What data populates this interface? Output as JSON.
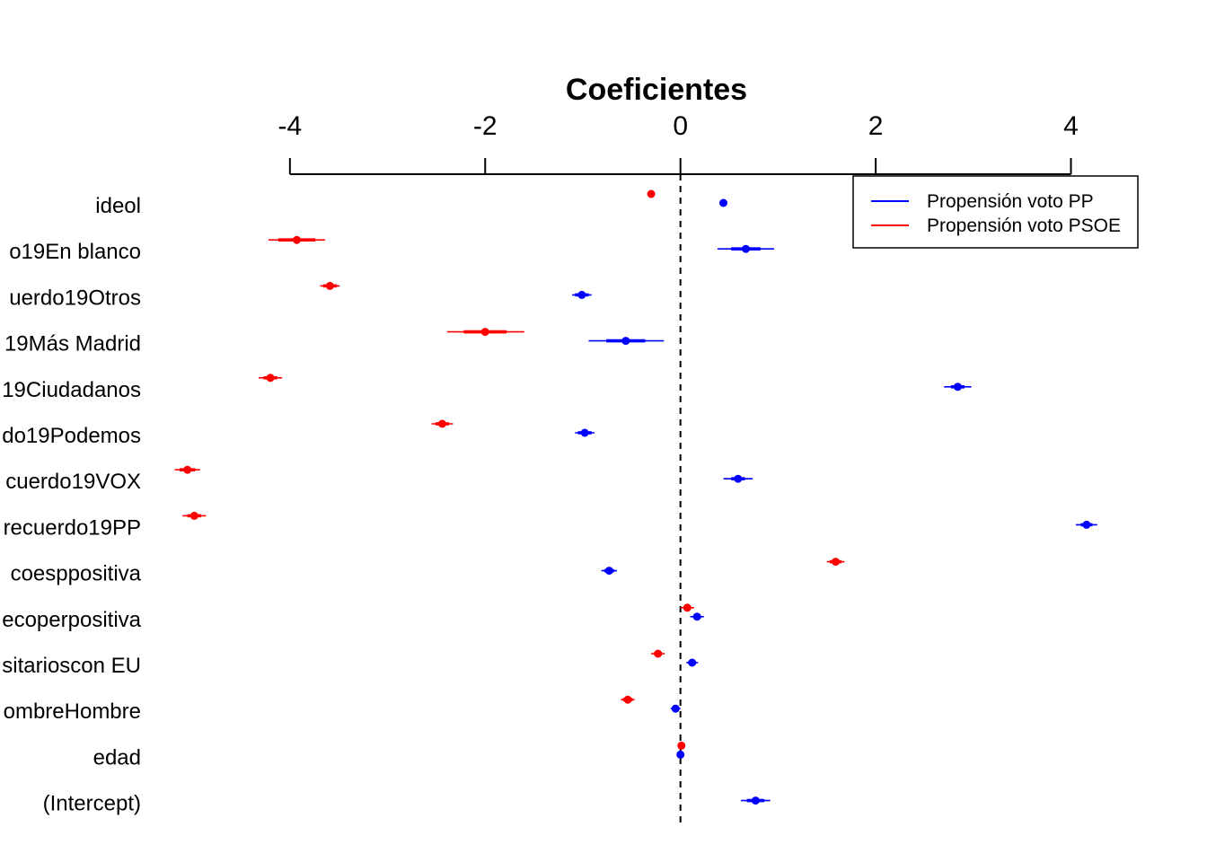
{
  "chart_data": {
    "type": "coefficient-plot",
    "title": "Coeficientes",
    "xlabel": "",
    "ylabel": "",
    "xlim": [
      -5.36,
      4.86
    ],
    "x_ticks": [
      -4,
      -2,
      0,
      2,
      4
    ],
    "x_tick_labels": [
      "-4",
      "-2",
      "0",
      "2",
      "4"
    ],
    "reference_line": 0,
    "grid": false,
    "legend_position": "top-right",
    "labels": [
      "ideol",
      "o19En blanco",
      "uerdo19Otros",
      "19Más Madrid",
      "19Ciudadanos",
      "do19Podemos",
      "cuerdo19VOX",
      "recuerdo19PP",
      "coesppositiva",
      "ecoperpositiva",
      "sitarioscon EU",
      "ombreHombre",
      "edad",
      "(Intercept)"
    ],
    "series": [
      {
        "name": "Propensión voto PP",
        "color": "#0000ff",
        "estimates": [
          0.44,
          0.67,
          -1.01,
          -0.56,
          2.84,
          -0.98,
          0.59,
          4.16,
          -0.73,
          0.17,
          0.12,
          -0.05,
          0.0,
          0.77
        ],
        "inner_low": [
          0.42,
          0.52,
          -1.08,
          -0.76,
          2.77,
          -1.05,
          0.52,
          4.1,
          -0.78,
          0.13,
          0.08,
          -0.08,
          -0.01,
          0.68
        ],
        "inner_high": [
          0.46,
          0.82,
          -0.94,
          -0.36,
          2.91,
          -0.91,
          0.66,
          4.22,
          -0.68,
          0.21,
          0.16,
          -0.02,
          0.01,
          0.86
        ],
        "outer_low": [
          0.41,
          0.38,
          -1.11,
          -0.94,
          2.7,
          -1.08,
          0.44,
          4.05,
          -0.81,
          0.1,
          0.06,
          -0.1,
          -0.01,
          0.62
        ],
        "outer_high": [
          0.47,
          0.96,
          -0.91,
          -0.17,
          2.98,
          -0.88,
          0.74,
          4.27,
          -0.65,
          0.24,
          0.18,
          0.0,
          0.01,
          0.92
        ]
      },
      {
        "name": "Propensión voto PSOE",
        "color": "#ff0000",
        "estimates": [
          -0.3,
          -3.93,
          -3.59,
          -2.0,
          -4.2,
          -2.44,
          -5.05,
          -4.98,
          1.59,
          0.07,
          -0.23,
          -0.54,
          0.01,
          null
        ],
        "inner_low": [
          -0.32,
          -4.12,
          -3.66,
          -2.22,
          -4.27,
          -2.51,
          -5.13,
          -5.05,
          1.53,
          0.03,
          -0.27,
          -0.59,
          0.0,
          null
        ],
        "inner_high": [
          -0.28,
          -3.74,
          -3.52,
          -1.78,
          -4.13,
          -2.37,
          -4.97,
          -4.91,
          1.65,
          0.11,
          -0.19,
          -0.49,
          0.02,
          null
        ],
        "outer_low": [
          -0.31,
          -4.22,
          -3.69,
          -2.39,
          -4.32,
          -2.55,
          -5.18,
          -5.1,
          1.5,
          0.0,
          -0.3,
          -0.61,
          0.0,
          null
        ],
        "outer_high": [
          -0.29,
          -3.64,
          -3.49,
          -1.6,
          -4.08,
          -2.33,
          -4.92,
          -4.86,
          1.68,
          0.14,
          -0.16,
          -0.47,
          0.02,
          null
        ]
      }
    ]
  }
}
